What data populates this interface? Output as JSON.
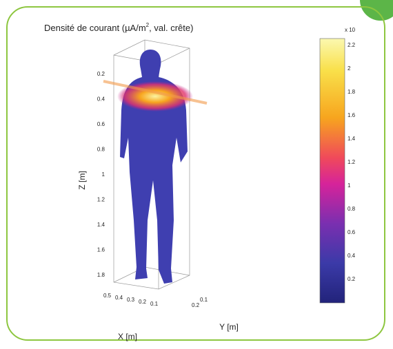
{
  "figure": {
    "title": {
      "main": "Densité de courant  (µA/m",
      "sup": "2",
      "rest": ", val. crête)"
    },
    "z_axis": {
      "label": "Z [m]",
      "ticks": [
        "0.2",
        "0.4",
        "0.6",
        "0.8",
        "1",
        "1.2",
        "1.4",
        "1.6",
        "1.8"
      ]
    },
    "x_axis": {
      "label": "X [m]",
      "ticks": [
        "0.5",
        "0.4",
        "0.3",
        "0.2",
        "0.1"
      ]
    },
    "y_axis": {
      "label": "Y [m]",
      "ticks": [
        "0.1",
        "0.2"
      ]
    },
    "colorbar": {
      "multiplier": "x 10",
      "ticks": [
        "2.2",
        "2",
        "1.8",
        "1.6",
        "1.4",
        "1.2",
        "1",
        "0.8",
        "0.6",
        "0.4",
        "0.2"
      ]
    }
  }
}
